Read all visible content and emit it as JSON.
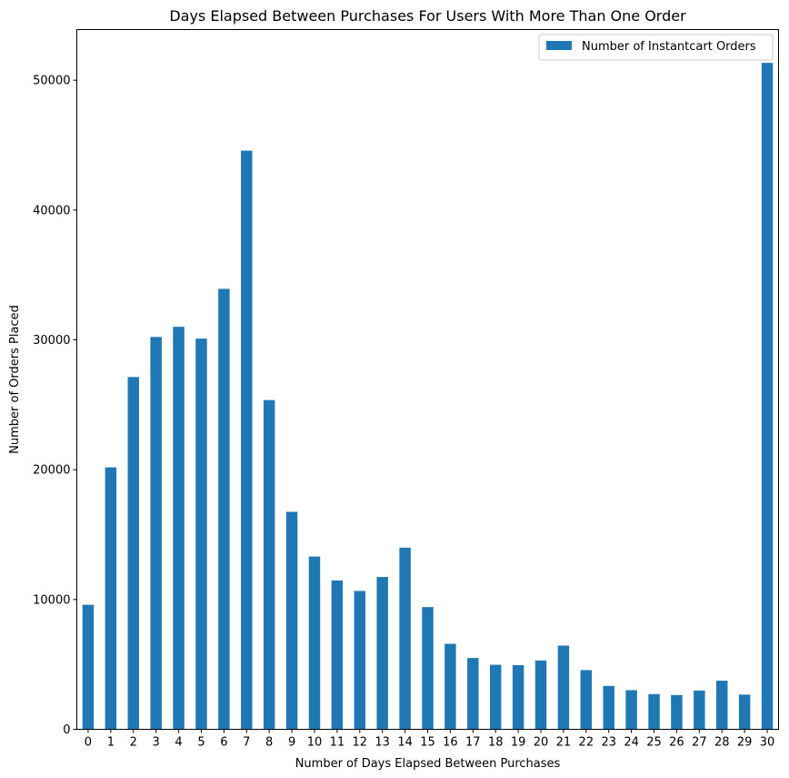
{
  "chart_data": {
    "type": "bar",
    "title": "Days Elapsed Between Purchases For Users With More Than One Order",
    "xlabel": "Number of Days Elapsed Between Purchases",
    "ylabel": "Number of Orders Placed",
    "categories": [
      "0",
      "1",
      "2",
      "3",
      "4",
      "5",
      "6",
      "7",
      "8",
      "9",
      "10",
      "11",
      "12",
      "13",
      "14",
      "15",
      "16",
      "17",
      "18",
      "19",
      "20",
      "21",
      "22",
      "23",
      "24",
      "25",
      "26",
      "27",
      "28",
      "29",
      "30"
    ],
    "series": [
      {
        "name": "Number of Instantcart Orders",
        "color": "#1f77b4",
        "values": [
          9589,
          20179,
          27138,
          30224,
          31006,
          30096,
          33930,
          44577,
          25361,
          16753,
          13309,
          11467,
          10658,
          11737,
          13992,
          9416,
          6587,
          5498,
          4971,
          4939,
          5302,
          6448,
          4564,
          3341,
          3015,
          2711,
          2640,
          2986,
          3745,
          2673,
          51337
        ]
      }
    ],
    "yticks": [
      0,
      10000,
      20000,
      30000,
      40000,
      50000
    ],
    "ylim": [
      0,
      53903
    ],
    "grid": false,
    "legend_position": "top-right"
  }
}
